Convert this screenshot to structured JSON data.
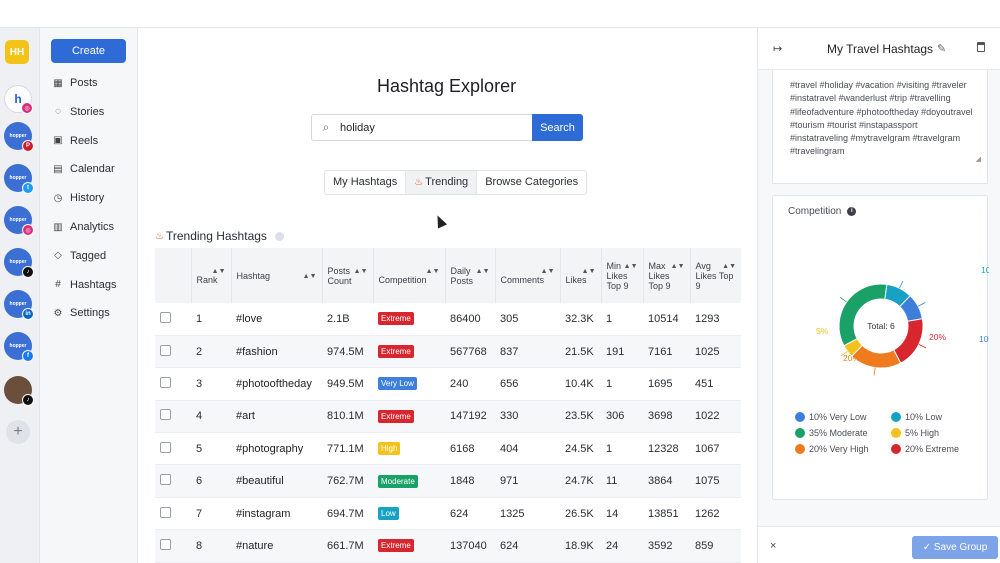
{
  "rail": {
    "workspace_initials": "HH",
    "accounts": [
      {
        "name": "hopper-instagram",
        "label": "h",
        "badge": "instagram",
        "badge_glyph": "◎",
        "active": true
      },
      {
        "name": "hopper-pinterest",
        "label": "hopper",
        "badge": "pinterest",
        "badge_glyph": "P"
      },
      {
        "name": "hopper-twitter",
        "label": "hopper",
        "badge": "twitter",
        "badge_glyph": "t"
      },
      {
        "name": "hopper-instagram-2",
        "label": "hopper",
        "badge": "instagram",
        "badge_glyph": "◎"
      },
      {
        "name": "hopper-tiktok",
        "label": "hopper",
        "badge": "tiktok",
        "badge_glyph": "♪"
      },
      {
        "name": "hopper-linkedin",
        "label": "hopper",
        "badge": "linkedin",
        "badge_glyph": "in"
      },
      {
        "name": "hopper-facebook",
        "label": "hopper",
        "badge": "facebook",
        "badge_glyph": "f"
      },
      {
        "name": "photo-tiktok",
        "label": "",
        "badge": "tiktok",
        "badge_glyph": "♪"
      }
    ],
    "add_glyph": "+"
  },
  "nav": {
    "create_label": "Create",
    "items": [
      {
        "icon": "posts-grid-icon",
        "glyph": "▦",
        "label": "Posts"
      },
      {
        "icon": "stories-icon",
        "glyph": "◌",
        "label": "Stories"
      },
      {
        "icon": "reels-icon",
        "glyph": "▣",
        "label": "Reels"
      },
      {
        "icon": "calendar-icon",
        "glyph": "▤",
        "label": "Calendar"
      },
      {
        "icon": "history-icon",
        "glyph": "◷",
        "label": "History"
      },
      {
        "icon": "analytics-icon",
        "glyph": "▥",
        "label": "Analytics"
      },
      {
        "icon": "tag-icon",
        "glyph": "◇",
        "label": "Tagged"
      },
      {
        "icon": "hashtag-icon",
        "glyph": "#",
        "label": "Hashtags"
      },
      {
        "icon": "settings-gear-icon",
        "glyph": "⚙",
        "label": "Settings"
      }
    ]
  },
  "main": {
    "title": "Hashtag Explorer",
    "search": {
      "value": "holiday",
      "button_label": "Search"
    },
    "tabs": [
      {
        "label": "My Hashtags",
        "active": false
      },
      {
        "label": "Trending",
        "active": true
      },
      {
        "label": "Browse Categories",
        "active": false
      }
    ],
    "section_title": "Trending Hashtags",
    "columns": [
      "Rank",
      "Hashtag",
      "Posts Count",
      "Competition",
      "Daily Posts",
      "Comments",
      "Likes",
      "Min Likes Top 9",
      "Max Likes Top 9",
      "Avg Likes Top 9"
    ],
    "rows": [
      {
        "rank": "1",
        "hashtag": "#love",
        "posts": "2.1B",
        "competition": "Extreme",
        "daily": "86400",
        "comments": "305",
        "likes": "32.3K",
        "min": "1",
        "max": "10514",
        "avg": "1293"
      },
      {
        "rank": "2",
        "hashtag": "#fashion",
        "posts": "974.5M",
        "competition": "Extreme",
        "daily": "567768",
        "comments": "837",
        "likes": "21.5K",
        "min": "191",
        "max": "7161",
        "avg": "1025"
      },
      {
        "rank": "3",
        "hashtag": "#photooftheday",
        "posts": "949.5M",
        "competition": "Very Low",
        "daily": "240",
        "comments": "656",
        "likes": "10.4K",
        "min": "1",
        "max": "1695",
        "avg": "451"
      },
      {
        "rank": "4",
        "hashtag": "#art",
        "posts": "810.1M",
        "competition": "Extreme",
        "daily": "147192",
        "comments": "330",
        "likes": "23.5K",
        "min": "306",
        "max": "3698",
        "avg": "1022"
      },
      {
        "rank": "5",
        "hashtag": "#photography",
        "posts": "771.1M",
        "competition": "High",
        "daily": "6168",
        "comments": "404",
        "likes": "24.5K",
        "min": "1",
        "max": "12328",
        "avg": "1067"
      },
      {
        "rank": "6",
        "hashtag": "#beautiful",
        "posts": "762.7M",
        "competition": "Moderate",
        "daily": "1848",
        "comments": "971",
        "likes": "24.7K",
        "min": "11",
        "max": "3864",
        "avg": "1075"
      },
      {
        "rank": "7",
        "hashtag": "#instagram",
        "posts": "694.7M",
        "competition": "Low",
        "daily": "624",
        "comments": "1325",
        "likes": "26.5K",
        "min": "14",
        "max": "13851",
        "avg": "1262"
      },
      {
        "rank": "8",
        "hashtag": "#nature",
        "posts": "661.7M",
        "competition": "Extreme",
        "daily": "137040",
        "comments": "624",
        "likes": "18.9K",
        "min": "24",
        "max": "3592",
        "avg": "859"
      }
    ]
  },
  "competition_colors": {
    "Extreme": "#d7262e",
    "Very High": "#f07a1e",
    "High": "#f4c21c",
    "Moderate": "#1aa167",
    "Low": "#17a2c4",
    "Very Low": "#3f7fdc"
  },
  "panel": {
    "title": "My Travel Hashtags",
    "tags_text": "#travel #holiday #vacation #visiting #traveler #instatravel #wanderlust #trip #travelling #lifeofadventure #photooftheday #doyoutravel #tourism #tourist #instapassport #instatraveling #mytravelgram #travelgram #travelingram",
    "competition_title": "Competition",
    "save_label": "Save Group",
    "close_glyph": "×"
  },
  "chart_data": {
    "type": "pie",
    "title": "Competition",
    "center_label": "Total: 6",
    "slices": [
      {
        "name": "Very Low",
        "value": 10,
        "label": "10%",
        "legend": "10% Very Low",
        "color": "#3f7fdc"
      },
      {
        "name": "Low",
        "value": 10,
        "label": "10%",
        "legend": "10% Low",
        "color": "#17a2c4"
      },
      {
        "name": "Moderate",
        "value": 35,
        "label": "35%",
        "legend": "35% Moderate",
        "color": "#1aa167"
      },
      {
        "name": "High",
        "value": 5,
        "label": "5%",
        "legend": "5% High",
        "color": "#f4c21c"
      },
      {
        "name": "Very High",
        "value": 20,
        "label": "20%",
        "legend": "20% Very High",
        "color": "#f07a1e"
      },
      {
        "name": "Extreme",
        "value": 20,
        "label": "20%",
        "legend": "20% Extreme",
        "color": "#d7262e"
      }
    ]
  }
}
